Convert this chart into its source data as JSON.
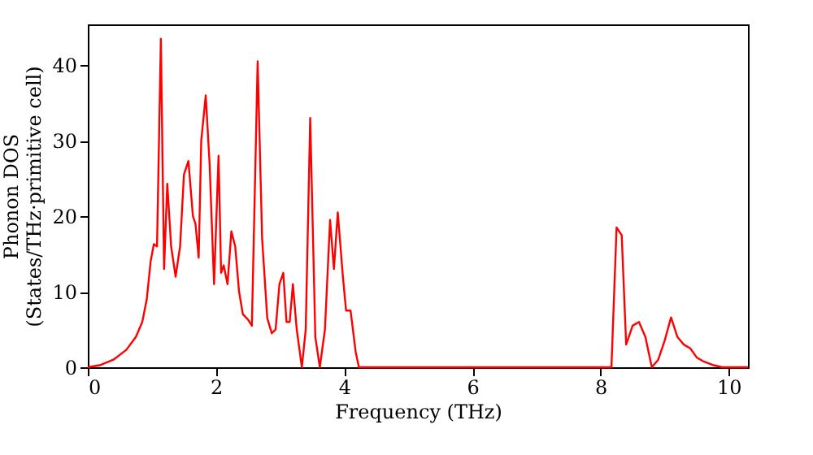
{
  "chart_data": {
    "type": "line",
    "xlabel": "Frequency (THz)",
    "ylabel": "Phonon DOS\n(States/THz·primitive cell)",
    "x": [
      0,
      0.2,
      0.4,
      0.6,
      0.75,
      0.85,
      0.92,
      0.98,
      1.03,
      1.08,
      1.14,
      1.19,
      1.24,
      1.3,
      1.37,
      1.44,
      1.5,
      1.57,
      1.64,
      1.68,
      1.73,
      1.77,
      1.84,
      1.9,
      1.97,
      2.04,
      2.08,
      2.12,
      2.18,
      2.24,
      2.3,
      2.36,
      2.42,
      2.5,
      2.56,
      2.65,
      2.72,
      2.8,
      2.87,
      2.93,
      2.99,
      3.05,
      3.1,
      3.15,
      3.2,
      3.26,
      3.34,
      3.4,
      3.47,
      3.55,
      3.62,
      3.7,
      3.78,
      3.84,
      3.9,
      3.98,
      4.03,
      4.1,
      4.18,
      4.23,
      8.17,
      8.25,
      8.33,
      8.4,
      8.5,
      8.6,
      8.7,
      8.8,
      8.9,
      9.0,
      9.1,
      9.2,
      9.3,
      9.4,
      9.5,
      9.6,
      9.75,
      9.9,
      10.3
    ],
    "series": [
      {
        "color": "#ff0000",
        "values": [
          0,
          0.3,
          1,
          2.3,
          4,
          6,
          9,
          14,
          16.3,
          16,
          43.5,
          13,
          24.3,
          16,
          12,
          16,
          25.5,
          27.3,
          20,
          19,
          14.5,
          30,
          36,
          27,
          11,
          28,
          12.5,
          13.5,
          11,
          18,
          16,
          10,
          7,
          6.3,
          5.5,
          40.5,
          17,
          6.5,
          4.5,
          5,
          11,
          12.5,
          6,
          6,
          11,
          5,
          0,
          5,
          33,
          4,
          0,
          5,
          19.5,
          13,
          20.5,
          12,
          7.5,
          7.5,
          2,
          0,
          0,
          18.5,
          17.5,
          3,
          5.5,
          6,
          4,
          0,
          1,
          3.5,
          6.6,
          4,
          3,
          2.5,
          1.3,
          0.8,
          0.3,
          0,
          0
        ]
      }
    ],
    "xlim": [
      0,
      10.3
    ],
    "ylim": [
      0,
      45.4
    ],
    "xticks": [
      0,
      2,
      4,
      6,
      8,
      10
    ],
    "yticks": [
      0,
      10,
      20,
      30,
      40
    ],
    "grid": false,
    "marker": "none",
    "line_style": "solid"
  }
}
